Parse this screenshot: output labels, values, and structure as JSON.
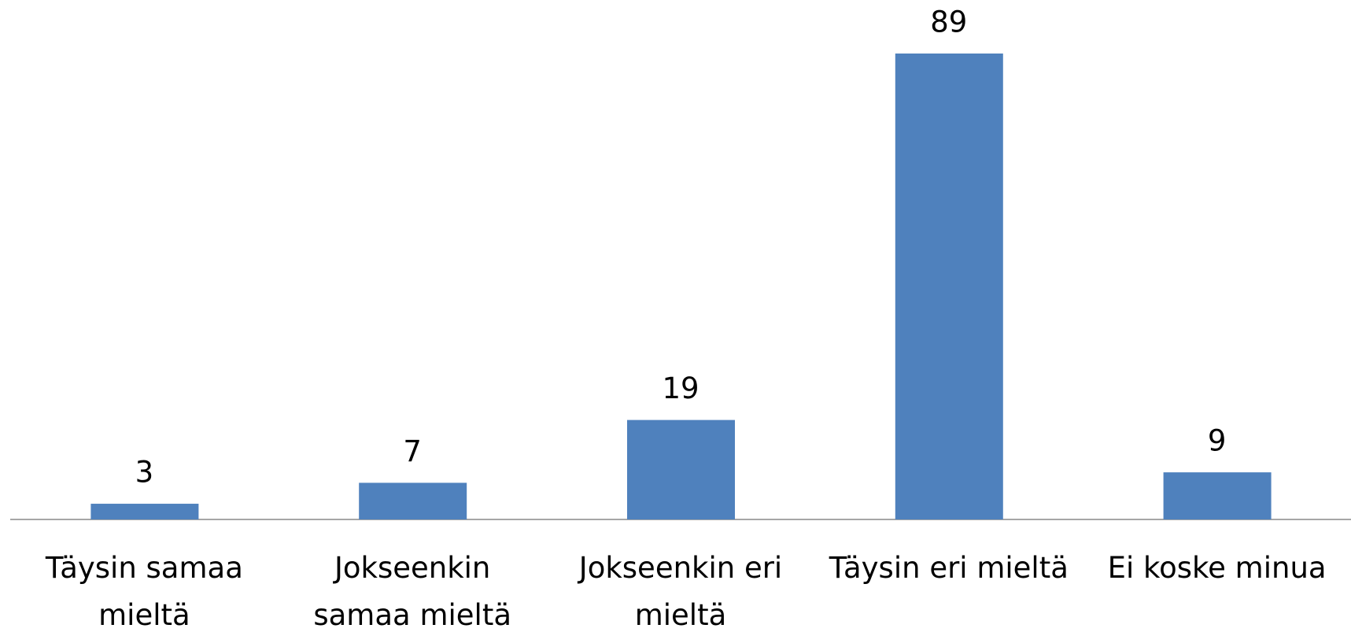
{
  "chart_data": {
    "type": "bar",
    "categories": [
      "Täysin samaa mieltä",
      "Jokseenkin samaa mieltä",
      "Jokseenkin eri mieltä",
      "Täysin eri mieltä",
      "Ei koske minua"
    ],
    "values": [
      3,
      7,
      19,
      89,
      9
    ],
    "color": "#4f81bd"
  }
}
